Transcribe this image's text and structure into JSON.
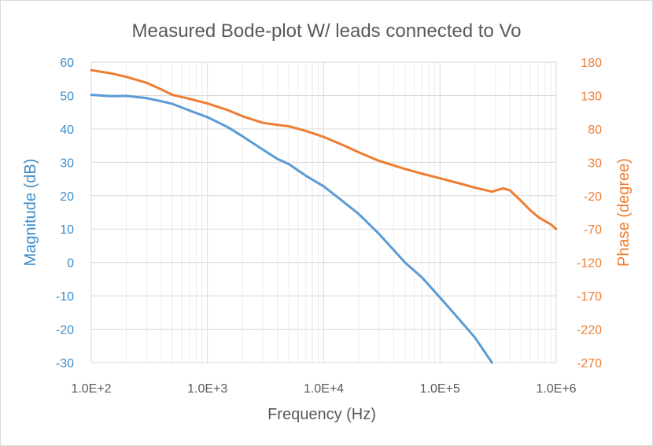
{
  "chart_data": {
    "type": "line",
    "title": "Measured Bode-plot W/ leads connected to Vo",
    "xlabel": "Frequency (Hz)",
    "ylabel_left": "Magnitude (dB)",
    "ylabel_right": "Phase (degree)",
    "x_scale": "log",
    "xlim": [
      100,
      1000000
    ],
    "x_tick_values": [
      100,
      1000,
      10000,
      100000,
      1000000
    ],
    "x_tick_labels": [
      "1.0E+2",
      "1.0E+3",
      "1.0E+4",
      "1.0E+5",
      "1.0E+6"
    ],
    "ylim_left": [
      -30,
      60
    ],
    "y_left_ticks": [
      60,
      50,
      40,
      30,
      20,
      10,
      0,
      -10,
      -20,
      -30
    ],
    "ylim_right": [
      -270,
      180
    ],
    "y_right_ticks": [
      180,
      130,
      80,
      30,
      -20,
      -70,
      -120,
      -170,
      -220,
      -270
    ],
    "series": [
      {
        "name": "Magnitude",
        "axis": "left",
        "color": "#5b9bd5",
        "x": [
          100,
          150,
          200,
          300,
          400,
          500,
          700,
          1000,
          1500,
          2000,
          3000,
          4000,
          5000,
          7000,
          10000,
          15000,
          20000,
          30000,
          50000,
          70000,
          100000,
          150000,
          200000,
          280000
        ],
        "y": [
          50.2,
          49.8,
          49.9,
          49.2,
          48.3,
          47.5,
          45.5,
          43.5,
          40.5,
          37.8,
          33.8,
          31.0,
          29.5,
          26.0,
          22.8,
          18.0,
          14.5,
          8.5,
          0.0,
          -4.5,
          -10.5,
          -17.5,
          -22.5,
          -30.0
        ]
      },
      {
        "name": "Phase",
        "axis": "right",
        "color": "#ed7d31",
        "x": [
          100,
          150,
          200,
          300,
          400,
          500,
          700,
          1000,
          1500,
          2000,
          3000,
          4000,
          5000,
          7000,
          10000,
          15000,
          20000,
          30000,
          50000,
          70000,
          100000,
          150000,
          200000,
          280000,
          350000,
          400000,
          500000,
          600000,
          700000,
          800000,
          900000,
          1000000
        ],
        "y": [
          168,
          163,
          158,
          149,
          139,
          131,
          125,
          118,
          108,
          99,
          89,
          86,
          84,
          77,
          68,
          55,
          45,
          32,
          20,
          13,
          6,
          -2,
          -8,
          -14,
          -9,
          -12,
          -28,
          -42,
          -52,
          -58,
          -63,
          -70
        ]
      }
    ]
  }
}
